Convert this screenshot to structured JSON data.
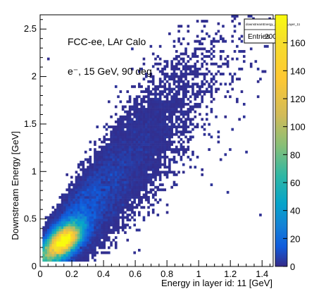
{
  "chart_data": {
    "type": "heatmap",
    "title": "",
    "xlabel": "Energy in layer id: 11 [GeV]",
    "ylabel": "Downstream Energy [GeV]",
    "xlim": [
      0,
      1.47
    ],
    "ylim": [
      0,
      2.65
    ],
    "xticks": [
      "0",
      "0.2",
      "0.4",
      "0.6",
      "0.8",
      "1",
      "1.2",
      "1.4"
    ],
    "yticks": [
      "0",
      "0.5",
      "1",
      "1.5",
      "2",
      "2.5"
    ],
    "zlim": [
      0,
      180
    ],
    "zticks": [
      "0",
      "20",
      "40",
      "60",
      "80",
      "100",
      "120",
      "140",
      "160"
    ],
    "colormap": "parula",
    "annotations": [
      "FCC-ee, LAr Calo",
      "e⁻, 15 GeV, 90 deg"
    ],
    "stats_box": {
      "name": "downstreamEnergy_energyInLayer_11",
      "entries_label": "Entries",
      "entries_value": "20000"
    },
    "distribution": {
      "description_of_density": "dense core near x=0.15, y=0.27 with peak counts ~180; elongated along y ≈ 1.9·x + 0.02 with spread increasing at higher x",
      "core_center": [
        0.15,
        0.27
      ],
      "peak_count": 180,
      "trend_slope": 1.9,
      "trend_intercept": 0.02
    },
    "grid": false,
    "legend": "none"
  }
}
